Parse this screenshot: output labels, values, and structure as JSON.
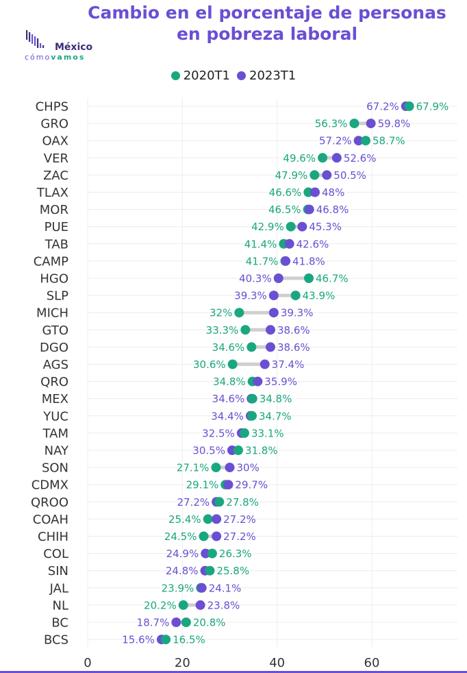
{
  "title_lines": [
    "Cambio en el porcentaje de personas",
    "en pobreza laboral"
  ],
  "logo": {
    "word": "México",
    "sub_a": "cómo",
    "sub_b": "vamos"
  },
  "colors": {
    "s2020": "#1aa77f",
    "s2023": "#6a4fd3",
    "connector": "#cfcfcf",
    "grid": "#ececec",
    "title": "#6a4fd3"
  },
  "chart_data": {
    "type": "dumbbell",
    "title": "Cambio en el porcentaje de personas en pobreza laboral",
    "series": [
      {
        "name": "2020T1"
      },
      {
        "name": "2023T1"
      }
    ],
    "xlim": [
      0,
      75
    ],
    "x_ticks": [
      "0",
      "20",
      "40",
      "60"
    ],
    "rows": [
      {
        "state": "CHPS",
        "v2020": 67.9,
        "v2023": 67.2,
        "l2020": "67.9%",
        "l2023": "67.2%"
      },
      {
        "state": "GRO",
        "v2020": 56.3,
        "v2023": 59.8,
        "l2020": "56.3%",
        "l2023": "59.8%"
      },
      {
        "state": "OAX",
        "v2020": 58.7,
        "v2023": 57.2,
        "l2020": "58.7%",
        "l2023": "57.2%"
      },
      {
        "state": "VER",
        "v2020": 49.6,
        "v2023": 52.6,
        "l2020": "49.6%",
        "l2023": "52.6%"
      },
      {
        "state": "ZAC",
        "v2020": 47.9,
        "v2023": 50.5,
        "l2020": "47.9%",
        "l2023": "50.5%"
      },
      {
        "state": "TLAX",
        "v2020": 46.6,
        "v2023": 48,
        "l2020": "46.6%",
        "l2023": "48%"
      },
      {
        "state": "MOR",
        "v2020": 46.5,
        "v2023": 46.8,
        "l2020": "46.5%",
        "l2023": "46.8%"
      },
      {
        "state": "PUE",
        "v2020": 42.9,
        "v2023": 45.3,
        "l2020": "42.9%",
        "l2023": "45.3%"
      },
      {
        "state": "TAB",
        "v2020": 41.4,
        "v2023": 42.6,
        "l2020": "41.4%",
        "l2023": "42.6%"
      },
      {
        "state": "CAMP",
        "v2020": 41.7,
        "v2023": 41.8,
        "l2020": "41.7%",
        "l2023": "41.8%"
      },
      {
        "state": "HGO",
        "v2020": 46.7,
        "v2023": 40.3,
        "l2020": "46.7%",
        "l2023": "40.3%"
      },
      {
        "state": "SLP",
        "v2020": 43.9,
        "v2023": 39.3,
        "l2020": "43.9%",
        "l2023": "39.3%"
      },
      {
        "state": "MICH",
        "v2020": 32,
        "v2023": 39.3,
        "l2020": "32%",
        "l2023": "39.3%"
      },
      {
        "state": "GTO",
        "v2020": 33.3,
        "v2023": 38.6,
        "l2020": "33.3%",
        "l2023": "38.6%"
      },
      {
        "state": "DGO",
        "v2020": 34.6,
        "v2023": 38.6,
        "l2020": "34.6%",
        "l2023": "38.6%"
      },
      {
        "state": "AGS",
        "v2020": 30.6,
        "v2023": 37.4,
        "l2020": "30.6%",
        "l2023": "37.4%"
      },
      {
        "state": "QRO",
        "v2020": 34.8,
        "v2023": 35.9,
        "l2020": "34.8%",
        "l2023": "35.9%"
      },
      {
        "state": "MEX",
        "v2020": 34.8,
        "v2023": 34.6,
        "l2020": "34.8%",
        "l2023": "34.6%"
      },
      {
        "state": "YUC",
        "v2020": 34.7,
        "v2023": 34.4,
        "l2020": "34.7%",
        "l2023": "34.4%"
      },
      {
        "state": "TAM",
        "v2020": 33.1,
        "v2023": 32.5,
        "l2020": "33.1%",
        "l2023": "32.5%"
      },
      {
        "state": "NAY",
        "v2020": 31.8,
        "v2023": 30.5,
        "l2020": "31.8%",
        "l2023": "30.5%"
      },
      {
        "state": "SON",
        "v2020": 27.1,
        "v2023": 30,
        "l2020": "27.1%",
        "l2023": "30%"
      },
      {
        "state": "CDMX",
        "v2020": 29.1,
        "v2023": 29.7,
        "l2020": "29.1%",
        "l2023": "29.7%"
      },
      {
        "state": "QROO",
        "v2020": 27.8,
        "v2023": 27.2,
        "l2020": "27.8%",
        "l2023": "27.2%"
      },
      {
        "state": "COAH",
        "v2020": 25.4,
        "v2023": 27.2,
        "l2020": "25.4%",
        "l2023": "27.2%"
      },
      {
        "state": "CHIH",
        "v2020": 24.5,
        "v2023": 27.2,
        "l2020": "24.5%",
        "l2023": "27.2%"
      },
      {
        "state": "COL",
        "v2020": 26.3,
        "v2023": 24.9,
        "l2020": "26.3%",
        "l2023": "24.9%"
      },
      {
        "state": "SIN",
        "v2020": 25.8,
        "v2023": 24.8,
        "l2020": "25.8%",
        "l2023": "24.8%"
      },
      {
        "state": "JAL",
        "v2020": 23.9,
        "v2023": 24.1,
        "l2020": "23.9%",
        "l2023": "24.1%"
      },
      {
        "state": "NL",
        "v2020": 20.2,
        "v2023": 23.8,
        "l2020": "20.2%",
        "l2023": "23.8%"
      },
      {
        "state": "BC",
        "v2020": 20.8,
        "v2023": 18.7,
        "l2020": "20.8%",
        "l2023": "18.7%"
      },
      {
        "state": "BCS",
        "v2020": 16.5,
        "v2023": 15.6,
        "l2020": "16.5%",
        "l2023": "15.6%"
      }
    ]
  }
}
